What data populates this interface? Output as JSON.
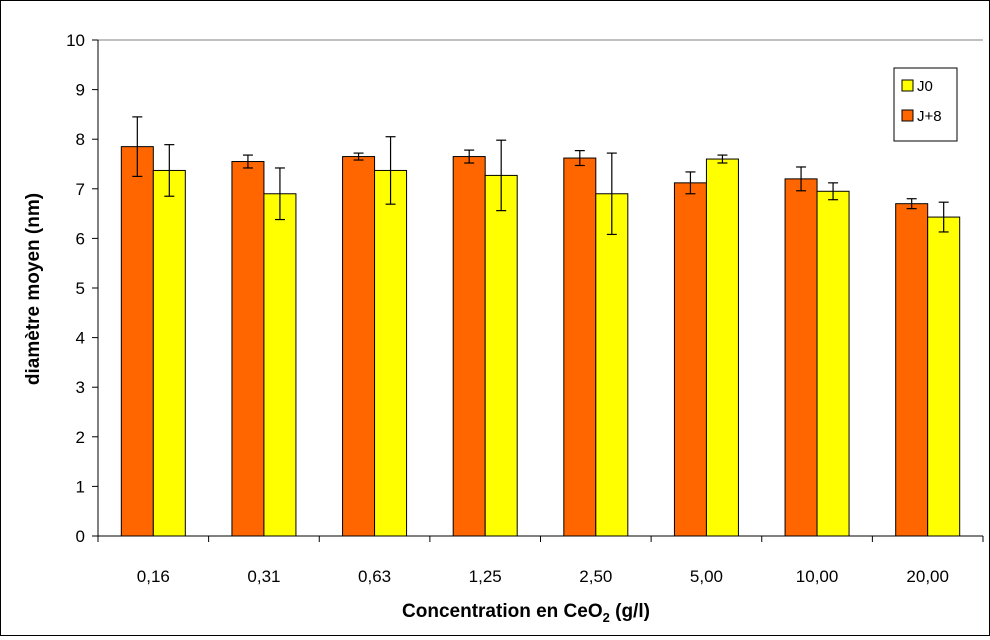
{
  "chart_data": {
    "type": "bar",
    "title": "",
    "xlabel": "Concentration en CeO",
    "xlabel_subscript": "2",
    "xlabel_suffix": " (g/l)",
    "ylabel": "diamètre moyen (nm)",
    "ylim": [
      0,
      10
    ],
    "yticks": [
      "0",
      "1",
      "2",
      "3",
      "4",
      "5",
      "6",
      "7",
      "8",
      "9",
      "10"
    ],
    "categories": [
      "0,16",
      "0,31",
      "0,63",
      "1,25",
      "2,50",
      "5,00",
      "10,00",
      "20,00"
    ],
    "grid": "top line only",
    "legend_position": "top-right",
    "series": [
      {
        "name": "J+8",
        "color": "#FF6600",
        "values": [
          7.85,
          7.55,
          7.65,
          7.65,
          7.62,
          7.12,
          7.2,
          6.7
        ],
        "errors": [
          0.6,
          0.13,
          0.07,
          0.13,
          0.15,
          0.22,
          0.24,
          0.1
        ]
      },
      {
        "name": "J0",
        "color": "#FFFF00",
        "values": [
          7.37,
          6.9,
          7.37,
          7.27,
          6.9,
          7.6,
          6.95,
          6.43
        ],
        "errors": [
          0.52,
          0.52,
          0.68,
          0.71,
          0.82,
          0.08,
          0.17,
          0.3
        ]
      }
    ],
    "legend_order": [
      "J0",
      "J+8"
    ]
  }
}
